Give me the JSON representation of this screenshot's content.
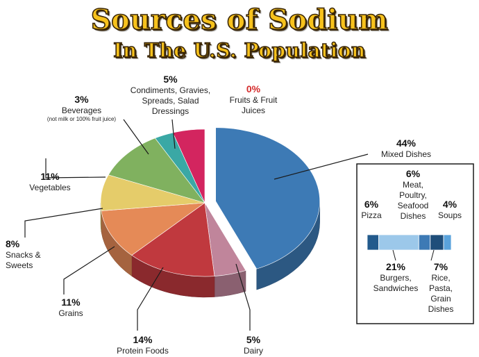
{
  "title": "Sources of Sodium",
  "subtitle": "In The U.S. Population",
  "chart_data": {
    "type": "pie",
    "title": "Sources of Sodium",
    "subtitle": "In The U.S. Population",
    "slices": [
      {
        "percent_label": "44%",
        "name": "Mixed Dishes",
        "value": 44,
        "color": "#3d7ab5",
        "exploded": true
      },
      {
        "percent_label": "5%",
        "name": "Dairy",
        "value": 5,
        "color": "#c0859b"
      },
      {
        "percent_label": "14%",
        "name": "Protein Foods",
        "value": 14,
        "color": "#c0393e"
      },
      {
        "percent_label": "11%",
        "name": "Grains",
        "value": 11,
        "color": "#e58a57"
      },
      {
        "percent_label": "8%",
        "name": "Snacks & Sweets",
        "value": 8,
        "color": "#e5cc6a"
      },
      {
        "percent_label": "11%",
        "name": "Vegetables",
        "value": 11,
        "color": "#80b15f"
      },
      {
        "percent_label": "3%",
        "name": "Beverages",
        "note": "(not milk or 100% fruit juice)",
        "value": 3,
        "color": "#3aa8a5"
      },
      {
        "percent_label": "5%",
        "name": "Condiments, Gravies, Spreads, Salad Dressings",
        "value": 5,
        "color": "#d3255f"
      },
      {
        "percent_label": "0%",
        "name": "Fruits & Fruit Juices",
        "value": 0,
        "color": "#d42b2b"
      }
    ],
    "breakdown": {
      "parent": "Mixed Dishes",
      "segments": [
        {
          "percent_label": "6%",
          "name": "Pizza",
          "value": 6,
          "color": "#225a8c"
        },
        {
          "percent_label": "21%",
          "name": "Burgers, Sandwiches",
          "value": 21,
          "color": "#9cc8ea"
        },
        {
          "percent_label": "6%",
          "name": "Meat, Poultry, Seafood Dishes",
          "value": 6,
          "color": "#3d7ab5"
        },
        {
          "percent_label": "7%",
          "name": "Rice, Pasta, Grain Dishes",
          "value": 7,
          "color": "#1f4e7a"
        },
        {
          "percent_label": "4%",
          "name": "Soups",
          "value": 4,
          "color": "#5aa3dc"
        }
      ]
    }
  }
}
